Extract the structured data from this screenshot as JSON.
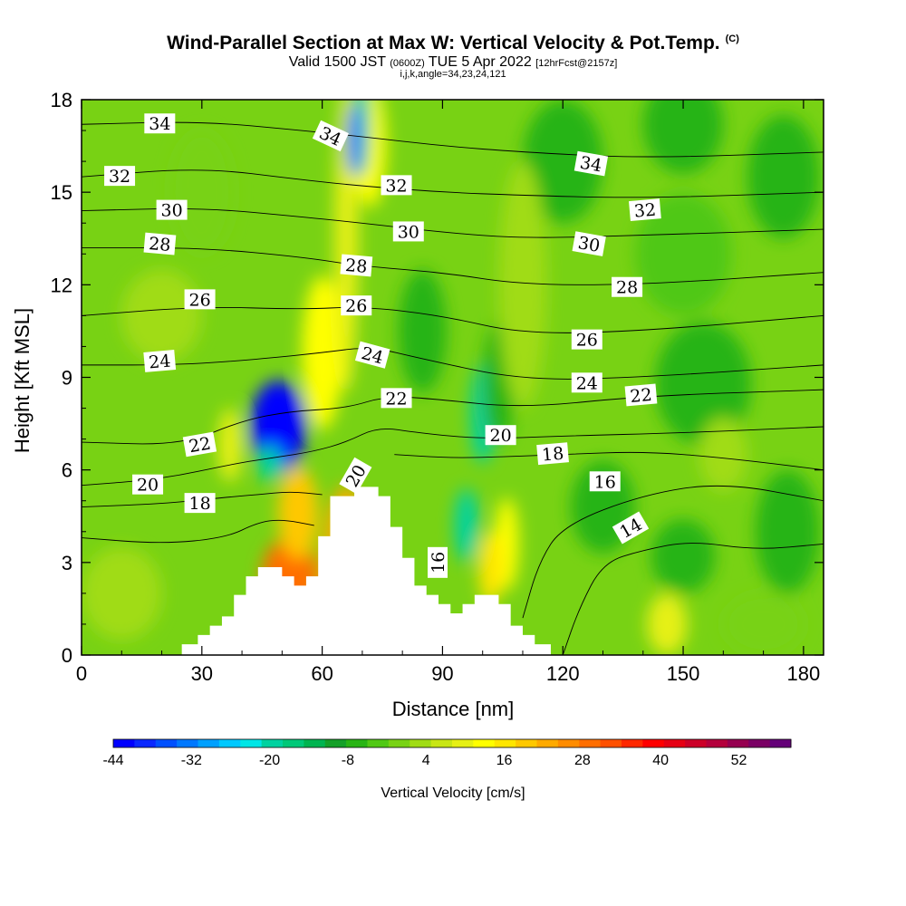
{
  "title": {
    "main": "Wind-Parallel Section at Max W: Vertical Velocity & Pot.Temp.",
    "copyright": "(C)",
    "valid_prefix": "Valid 1500 JST",
    "valid_z": "(0600Z)",
    "valid_date": "TUE 5 Apr 2022",
    "forecast": "[12hrFcst@2157z]",
    "indices": "i,j,k,angle=34,23,24,121"
  },
  "chart_data": {
    "type": "heatmap",
    "xlabel": "Distance [nm]",
    "ylabel": "Height [Kft MSL]",
    "xlim": [
      0,
      185
    ],
    "ylim": [
      0,
      18
    ],
    "x_ticks": [
      0,
      30,
      60,
      90,
      120,
      150,
      180
    ],
    "y_ticks": [
      0,
      3,
      6,
      9,
      12,
      15,
      18
    ],
    "colorbar": {
      "label": "Vertical Velocity [cm/s]",
      "tick_labels": [
        "-44",
        "-32",
        "-20",
        "-8",
        "4",
        "16",
        "28",
        "40",
        "52"
      ],
      "tick_values": [
        -44,
        -32,
        -20,
        -8,
        4,
        16,
        28,
        40,
        52
      ],
      "bins": [
        -44,
        60
      ],
      "colors": [
        "#0000ff",
        "#0a28ff",
        "#0050ff",
        "#0078ff",
        "#00a0ff",
        "#00c8ff",
        "#00e6e6",
        "#00d2a0",
        "#00c878",
        "#00b450",
        "#14a028",
        "#28b414",
        "#50c814",
        "#78d214",
        "#a0dc14",
        "#c8e614",
        "#e6f014",
        "#ffff00",
        "#ffe600",
        "#ffc800",
        "#ffaa00",
        "#ff8c00",
        "#ff6e00",
        "#ff5000",
        "#ff2800",
        "#ff0000",
        "#e60014",
        "#cc0028",
        "#b4003c",
        "#960050",
        "#7a0064",
        "#640078"
      ]
    },
    "terrain": [
      [
        0,
        0
      ],
      [
        25,
        0
      ],
      [
        25,
        0.35
      ],
      [
        29,
        0.35
      ],
      [
        29,
        0.65
      ],
      [
        32,
        0.65
      ],
      [
        32,
        0.95
      ],
      [
        35,
        0.95
      ],
      [
        35,
        1.25
      ],
      [
        38,
        1.25
      ],
      [
        38,
        1.95
      ],
      [
        41,
        1.95
      ],
      [
        41,
        2.55
      ],
      [
        44,
        2.55
      ],
      [
        44,
        2.85
      ],
      [
        50,
        2.85
      ],
      [
        50,
        2.55
      ],
      [
        53,
        2.55
      ],
      [
        53,
        2.25
      ],
      [
        56,
        2.25
      ],
      [
        56,
        2.55
      ],
      [
        59,
        2.55
      ],
      [
        59,
        3.85
      ],
      [
        62,
        3.85
      ],
      [
        62,
        5.15
      ],
      [
        68,
        5.15
      ],
      [
        68,
        5.45
      ],
      [
        74,
        5.45
      ],
      [
        74,
        5.15
      ],
      [
        77,
        5.15
      ],
      [
        77,
        4.15
      ],
      [
        80,
        4.15
      ],
      [
        80,
        3.15
      ],
      [
        83,
        3.15
      ],
      [
        83,
        2.25
      ],
      [
        86,
        2.25
      ],
      [
        86,
        1.95
      ],
      [
        89,
        1.95
      ],
      [
        89,
        1.65
      ],
      [
        92,
        1.65
      ],
      [
        92,
        1.35
      ],
      [
        95,
        1.35
      ],
      [
        95,
        1.65
      ],
      [
        98,
        1.65
      ],
      [
        98,
        1.95
      ],
      [
        104,
        1.95
      ],
      [
        104,
        1.65
      ],
      [
        107,
        1.65
      ],
      [
        107,
        0.95
      ],
      [
        110,
        0.95
      ],
      [
        110,
        0.65
      ],
      [
        113,
        0.65
      ],
      [
        113,
        0.35
      ],
      [
        117,
        0.35
      ],
      [
        117,
        0
      ],
      [
        185,
        0
      ]
    ],
    "theta_contours": [
      {
        "label": "14",
        "points": [
          [
            120,
            0
          ],
          [
            124,
            1.5
          ],
          [
            130,
            3
          ],
          [
            140,
            3.4
          ],
          [
            152,
            3.7
          ],
          [
            168,
            3.4
          ],
          [
            185,
            3.6
          ]
        ]
      },
      {
        "label": "16",
        "points": [
          [
            110,
            1.2
          ],
          [
            114,
            3
          ],
          [
            120,
            4.2
          ],
          [
            140,
            5.2
          ],
          [
            160,
            5.6
          ],
          [
            185,
            5.0
          ]
        ]
      },
      {
        "label": "16",
        "points": [
          [
            0,
            3.8
          ],
          [
            20,
            3.6
          ],
          [
            36,
            3.8
          ],
          [
            44,
            4.3
          ],
          [
            50,
            4.4
          ],
          [
            58,
            4.2
          ]
        ]
      },
      {
        "label": "18",
        "points": [
          [
            0,
            4.8
          ],
          [
            20,
            4.9
          ],
          [
            35,
            5.1
          ],
          [
            44,
            5.2
          ],
          [
            52,
            5.3
          ],
          [
            60,
            5.2
          ]
        ]
      },
      {
        "label": "18",
        "points": [
          [
            78,
            6.5
          ],
          [
            90,
            6.4
          ],
          [
            100,
            6.4
          ],
          [
            120,
            6.5
          ],
          [
            140,
            6.6
          ],
          [
            160,
            6.4
          ],
          [
            185,
            6.0
          ]
        ]
      },
      {
        "label": "20",
        "points": [
          [
            0,
            5.5
          ],
          [
            20,
            5.7
          ],
          [
            38,
            6.2
          ],
          [
            48,
            6.4
          ],
          [
            58,
            6.6
          ],
          [
            66,
            6.9
          ],
          [
            74,
            7.4
          ],
          [
            84,
            7.2
          ],
          [
            100,
            7.0
          ],
          [
            120,
            7.1
          ],
          [
            150,
            7.2
          ],
          [
            185,
            7.4
          ]
        ]
      },
      {
        "label": "22",
        "points": [
          [
            0,
            6.9
          ],
          [
            25,
            6.8
          ],
          [
            40,
            7.6
          ],
          [
            52,
            7.9
          ],
          [
            66,
            8.0
          ],
          [
            76,
            8.4
          ],
          [
            88,
            8.3
          ],
          [
            110,
            8.0
          ],
          [
            140,
            8.4
          ],
          [
            185,
            8.6
          ]
        ]
      },
      {
        "label": "24",
        "points": [
          [
            0,
            9.4
          ],
          [
            25,
            9.4
          ],
          [
            45,
            9.6
          ],
          [
            60,
            9.8
          ],
          [
            72,
            10.0
          ],
          [
            85,
            9.6
          ],
          [
            110,
            8.9
          ],
          [
            140,
            9.0
          ],
          [
            185,
            9.4
          ]
        ]
      },
      {
        "label": "26",
        "points": [
          [
            0,
            11.0
          ],
          [
            30,
            11.3
          ],
          [
            55,
            11.2
          ],
          [
            70,
            11.3
          ],
          [
            90,
            11.0
          ],
          [
            110,
            10.4
          ],
          [
            140,
            10.5
          ],
          [
            185,
            11.0
          ]
        ]
      },
      {
        "label": "28",
        "points": [
          [
            0,
            13.2
          ],
          [
            30,
            13.2
          ],
          [
            55,
            12.9
          ],
          [
            70,
            12.6
          ],
          [
            90,
            12.4
          ],
          [
            110,
            12.0
          ],
          [
            140,
            12.0
          ],
          [
            185,
            12.4
          ]
        ]
      },
      {
        "label": "30",
        "points": [
          [
            0,
            14.4
          ],
          [
            30,
            14.5
          ],
          [
            55,
            14.2
          ],
          [
            70,
            14.0
          ],
          [
            90,
            13.7
          ],
          [
            110,
            13.5
          ],
          [
            140,
            13.6
          ],
          [
            185,
            13.8
          ]
        ]
      },
      {
        "label": "32",
        "points": [
          [
            0,
            15.5
          ],
          [
            30,
            15.8
          ],
          [
            55,
            15.4
          ],
          [
            70,
            15.2
          ],
          [
            90,
            15.0
          ],
          [
            110,
            14.9
          ],
          [
            140,
            14.8
          ],
          [
            185,
            15.0
          ]
        ]
      },
      {
        "label": "34",
        "points": [
          [
            0,
            17.2
          ],
          [
            30,
            17.3
          ],
          [
            55,
            17.0
          ],
          [
            70,
            16.8
          ],
          [
            90,
            16.5
          ],
          [
            110,
            16.3
          ],
          [
            140,
            16.1
          ],
          [
            185,
            16.3
          ]
        ]
      }
    ],
    "contour_label_marks": [
      {
        "text": "34",
        "x": 19.5,
        "y": 17.2,
        "angle": 0
      },
      {
        "text": "34",
        "x": 62,
        "y": 16.8,
        "angle": 25
      },
      {
        "text": "34",
        "x": 127,
        "y": 15.9,
        "angle": 10
      },
      {
        "text": "32",
        "x": 9.5,
        "y": 15.5,
        "angle": 0
      },
      {
        "text": "32",
        "x": 78.5,
        "y": 15.2,
        "angle": 0
      },
      {
        "text": "32",
        "x": 140.5,
        "y": 14.4,
        "angle": -5
      },
      {
        "text": "30",
        "x": 22.5,
        "y": 14.4,
        "angle": 0
      },
      {
        "text": "30",
        "x": 81.5,
        "y": 13.7,
        "angle": 0
      },
      {
        "text": "30",
        "x": 126.5,
        "y": 13.3,
        "angle": 10
      },
      {
        "text": "28",
        "x": 19.5,
        "y": 13.3,
        "angle": 5
      },
      {
        "text": "28",
        "x": 68.5,
        "y": 12.6,
        "angle": 5
      },
      {
        "text": "28",
        "x": 136,
        "y": 11.9,
        "angle": 0
      },
      {
        "text": "26",
        "x": 29.5,
        "y": 11.5,
        "angle": 0
      },
      {
        "text": "26",
        "x": 68.5,
        "y": 11.3,
        "angle": 0
      },
      {
        "text": "26",
        "x": 126,
        "y": 10.2,
        "angle": 0
      },
      {
        "text": "24",
        "x": 19.5,
        "y": 9.5,
        "angle": -5
      },
      {
        "text": "24",
        "x": 72.5,
        "y": 9.7,
        "angle": 15
      },
      {
        "text": "24",
        "x": 126,
        "y": 8.8,
        "angle": 0
      },
      {
        "text": "22",
        "x": 29.5,
        "y": 6.8,
        "angle": -10
      },
      {
        "text": "22",
        "x": 78.5,
        "y": 8.3,
        "angle": 0
      },
      {
        "text": "22",
        "x": 139.5,
        "y": 8.4,
        "angle": -5
      },
      {
        "text": "20",
        "x": 16.5,
        "y": 5.5,
        "angle": 0
      },
      {
        "text": "20",
        "x": 68.5,
        "y": 5.8,
        "angle": -60
      },
      {
        "text": "20",
        "x": 104.5,
        "y": 7.1,
        "angle": 0
      },
      {
        "text": "18",
        "x": 29.5,
        "y": 4.9,
        "angle": 0
      },
      {
        "text": "18",
        "x": 117.5,
        "y": 6.5,
        "angle": -5
      },
      {
        "text": "16",
        "x": 130.5,
        "y": 5.6,
        "angle": 0
      },
      {
        "text": "16",
        "x": 89,
        "y": 3.0,
        "angle": -90
      },
      {
        "text": "14",
        "x": 137,
        "y": 4.1,
        "angle": -30
      }
    ],
    "w_features": [
      {
        "x": 49,
        "y": 7.4,
        "rx": 7,
        "ry": 1.5,
        "value": -42
      },
      {
        "x": 49,
        "y": 7.4,
        "rx": 4.5,
        "ry": 0.9,
        "value": -44
      },
      {
        "x": 47,
        "y": 6.2,
        "rx": 3,
        "ry": 0.6,
        "value": -20
      },
      {
        "x": 66,
        "y": 2.5,
        "rx": 6,
        "ry": 3,
        "value": 22
      },
      {
        "x": 52,
        "y": 2.6,
        "rx": 7,
        "ry": 1.2,
        "value": 28
      },
      {
        "x": 54,
        "y": 4.6,
        "rx": 5,
        "ry": 1.5,
        "value": 18
      },
      {
        "x": 60,
        "y": 9.8,
        "rx": 5,
        "ry": 2.5,
        "value": 14
      },
      {
        "x": 66,
        "y": 13.5,
        "rx": 3,
        "ry": 5,
        "value": 10
      },
      {
        "x": 72,
        "y": 16.5,
        "rx": 4,
        "ry": 2,
        "value": 12
      },
      {
        "x": 106,
        "y": 3.6,
        "rx": 3,
        "ry": 1.5,
        "value": 14
      },
      {
        "x": 102,
        "y": 2.8,
        "rx": 3,
        "ry": 1.2,
        "value": 16
      },
      {
        "x": 96,
        "y": 4.2,
        "rx": 3,
        "ry": 1.2,
        "value": -20
      },
      {
        "x": 100,
        "y": 7.8,
        "rx": 3,
        "ry": 1.6,
        "value": -20
      },
      {
        "x": 104,
        "y": 8.8,
        "rx": 4,
        "ry": 2,
        "value": -8
      },
      {
        "x": 70,
        "y": 17.5,
        "rx": 2,
        "ry": 2,
        "value": -20
      },
      {
        "x": 68,
        "y": 16.7,
        "rx": 2,
        "ry": 1.2,
        "value": -32
      },
      {
        "x": 120,
        "y": 16.0,
        "rx": 10,
        "ry": 2,
        "value": -8
      },
      {
        "x": 85,
        "y": 10.5,
        "rx": 6,
        "ry": 2,
        "value": -8
      },
      {
        "x": 150,
        "y": 13,
        "rx": 12,
        "ry": 2,
        "value": -4
      },
      {
        "x": 155,
        "y": 8.8,
        "rx": 12,
        "ry": 2,
        "value": -8
      },
      {
        "x": 130,
        "y": 4.8,
        "rx": 8,
        "ry": 1.5,
        "value": -8
      },
      {
        "x": 150,
        "y": 3.2,
        "rx": 8,
        "ry": 1.2,
        "value": -8
      },
      {
        "x": 176,
        "y": 4.0,
        "rx": 8,
        "ry": 2,
        "value": -8
      },
      {
        "x": 175,
        "y": 15.5,
        "rx": 9,
        "ry": 2,
        "value": -8
      },
      {
        "x": 150,
        "y": 17.2,
        "rx": 10,
        "ry": 1.6,
        "value": -8
      },
      {
        "x": 20,
        "y": 11.0,
        "rx": 10,
        "ry": 1.5,
        "value": 2
      },
      {
        "x": 30,
        "y": 15,
        "rx": 8,
        "ry": 2,
        "value": 1
      },
      {
        "x": 37,
        "y": 6.8,
        "rx": 3,
        "ry": 1.2,
        "value": 10
      },
      {
        "x": 110,
        "y": 12.0,
        "rx": 6,
        "ry": 4,
        "value": 3
      },
      {
        "x": 170,
        "y": 1.0,
        "rx": 10,
        "ry": 1,
        "value": 1
      },
      {
        "x": 10,
        "y": 2.0,
        "rx": 10,
        "ry": 1.5,
        "value": 2
      },
      {
        "x": 160,
        "y": 6.5,
        "rx": 6,
        "ry": 1.2,
        "value": 2
      },
      {
        "x": 146,
        "y": 1.0,
        "rx": 5,
        "ry": 1,
        "value": 8
      }
    ]
  }
}
